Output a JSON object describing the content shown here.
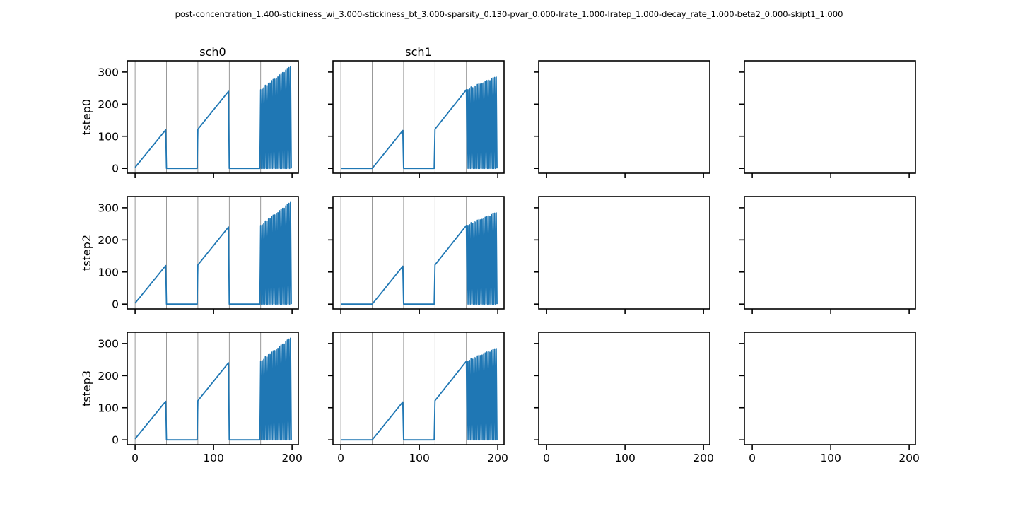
{
  "suptitle": "post-concentration_1.400-stickiness_wi_3.000-stickiness_bt_3.000-sparsity_0.130-pvar_0.000-lrate_1.000-lratep_1.000-decay_rate_1.000-beta2_0.000-skipt1_1.000",
  "columns": [
    "sch0",
    "sch1",
    "",
    ""
  ],
  "rows": [
    "tstep0",
    "tstep2",
    "tstep3"
  ],
  "colors": {
    "line": "#1f77b4",
    "vline": "#808080",
    "axis": "#000000"
  },
  "chart_data": {
    "type": "line",
    "layout": "grid 3x4, shared x and y axes",
    "xlim": [
      -10,
      208
    ],
    "ylim": [
      -15,
      335
    ],
    "xticks": [
      0,
      100,
      200
    ],
    "yticks": [
      0,
      100,
      200,
      300
    ],
    "grid": false,
    "vertical_lines_x": [
      0,
      40,
      80,
      120,
      160
    ],
    "schedules": {
      "sch0": {
        "ramps": [
          {
            "x": [
              0,
              39
            ],
            "y": [
              3,
              120
            ]
          },
          {
            "x": [
              40,
              79
            ],
            "y": [
              0,
              0
            ]
          },
          {
            "x": [
              80,
              119
            ],
            "y": [
              122,
              240
            ]
          },
          {
            "x": [
              120,
              159
            ],
            "y": [
              0,
              0
            ]
          }
        ],
        "oscillation": {
          "x_start": 160,
          "x_end": 199,
          "peak_start": 245,
          "peak_end": 318
        }
      },
      "sch1": {
        "ramps": [
          {
            "x": [
              0,
              39
            ],
            "y": [
              0,
              0
            ]
          },
          {
            "x": [
              40,
              79
            ],
            "y": [
              0,
              118
            ]
          },
          {
            "x": [
              80,
              119
            ],
            "y": [
              0,
              0
            ]
          },
          {
            "x": [
              120,
              159
            ],
            "y": [
              122,
              242
            ]
          }
        ],
        "oscillation": {
          "x_start": 160,
          "x_end": 199,
          "peak_start": 245,
          "peak_end": 285
        }
      }
    },
    "panels": [
      {
        "row": "tstep0",
        "column": "sch0",
        "series": "sch0"
      },
      {
        "row": "tstep0",
        "column": "sch1",
        "series": "sch1"
      },
      {
        "row": "tstep0",
        "column": 2,
        "series": null
      },
      {
        "row": "tstep0",
        "column": 3,
        "series": null
      },
      {
        "row": "tstep2",
        "column": "sch0",
        "series": "sch0"
      },
      {
        "row": "tstep2",
        "column": "sch1",
        "series": "sch1"
      },
      {
        "row": "tstep2",
        "column": 2,
        "series": null
      },
      {
        "row": "tstep2",
        "column": 3,
        "series": null
      },
      {
        "row": "tstep3",
        "column": "sch0",
        "series": "sch0"
      },
      {
        "row": "tstep3",
        "column": "sch1",
        "series": "sch1"
      },
      {
        "row": "tstep3",
        "column": 2,
        "series": null
      },
      {
        "row": "tstep3",
        "column": 3,
        "series": null
      }
    ]
  }
}
